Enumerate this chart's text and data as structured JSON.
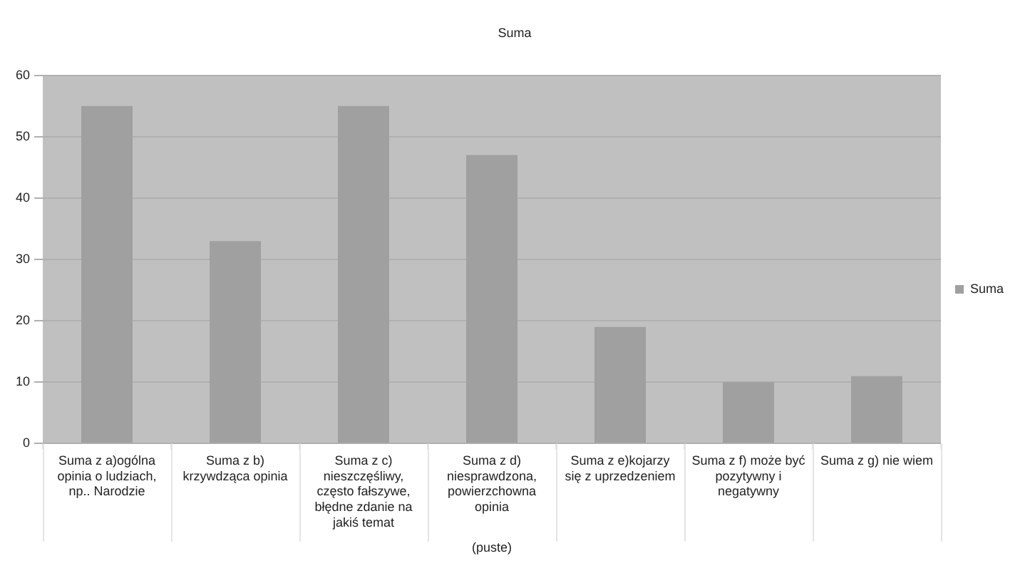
{
  "chart_data": {
    "type": "bar",
    "title": "Suma",
    "xlabel": "(puste)",
    "categories": [
      "Suma z a)ogólna opinia o ludziach, np.. Narodzie",
      "Suma z b) krzywdząca opinia",
      "Suma z c) nieszczęśliwy, często fałszywe, błędne zdanie na jakiś temat",
      "Suma z d) niesprawdzona, powierzchowna opinia",
      "Suma z e)kojarzy się z uprzedzeniem",
      "Suma z f) może być pozytywny i negatywny",
      "Suma z g) nie wiem"
    ],
    "series": [
      {
        "name": "Suma",
        "color": "#a0a0a0",
        "values": [
          55,
          33,
          55,
          47,
          19,
          10,
          11
        ]
      }
    ],
    "ylim": [
      0,
      60
    ],
    "yticks": [
      0,
      10,
      20,
      30,
      40,
      50,
      60
    ],
    "grid": "y",
    "legend": "right"
  }
}
